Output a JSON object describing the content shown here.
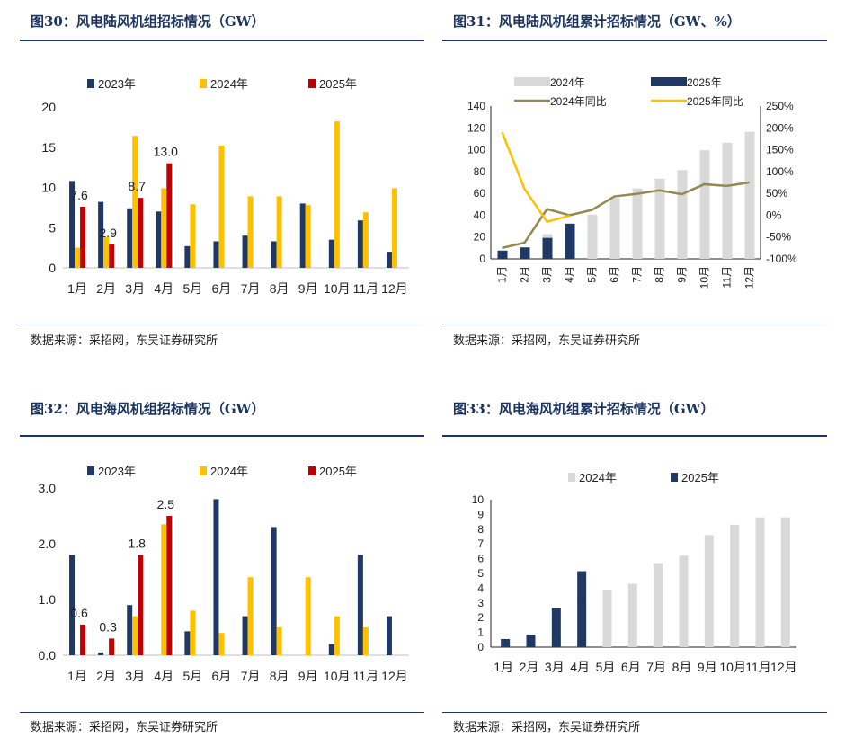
{
  "colors": {
    "c2023": "#1f3864",
    "c2024": "#ffc000",
    "c2025": "#c00000",
    "grey": "#d9d9d9",
    "navy": "#1f3864",
    "olive": "#938953",
    "yellow": "#ffc000",
    "title": "#1b3560"
  },
  "source_text": "数据来源：采招网，东吴证券研究所",
  "panels": [
    {
      "title": "图30：风电陆风机组招标情况（GW）"
    },
    {
      "title": "图31：风电陆风机组累计招标情况（GW、%）"
    },
    {
      "title": "图32：风电海风机组招标情况（GW）"
    },
    {
      "title": "图33：风电海风机组累计招标情况（GW）"
    }
  ],
  "chart_data": [
    {
      "type": "bar",
      "title": "图30：风电陆风机组招标情况（GW）",
      "categories": [
        "1月",
        "2月",
        "3月",
        "4月",
        "5月",
        "6月",
        "7月",
        "8月",
        "9月",
        "10月",
        "11月",
        "12月"
      ],
      "series": [
        {
          "name": "2023年",
          "values": [
            10.8,
            8.2,
            7.4,
            7.0,
            2.7,
            3.3,
            4.0,
            3.3,
            8.0,
            3.5,
            5.9,
            2.0
          ]
        },
        {
          "name": "2024年",
          "values": [
            2.5,
            3.8,
            16.4,
            9.9,
            7.9,
            15.2,
            8.9,
            8.9,
            7.8,
            18.2,
            6.9,
            9.9
          ]
        },
        {
          "name": "2025年",
          "values": [
            7.6,
            2.9,
            8.7,
            13.0,
            null,
            null,
            null,
            null,
            null,
            null,
            null,
            null
          ]
        }
      ],
      "data_labels": [
        "7.6",
        "2.9",
        "8.7",
        "13.0"
      ],
      "ylim": [
        0,
        20
      ],
      "yticks": [
        "0",
        "5",
        "10",
        "15",
        "20"
      ],
      "legend": "top"
    },
    {
      "type": "bar",
      "title": "图31：风电陆风机组累计招标情况（GW、%）",
      "categories": [
        "1月",
        "2月",
        "3月",
        "4月",
        "5月",
        "6月",
        "7月",
        "8月",
        "9月",
        "10月",
        "11月",
        "12月"
      ],
      "series": [
        {
          "name": "2024年",
          "kind": "bar",
          "values": [
            2.5,
            6.3,
            22.7,
            32.6,
            40.5,
            55.7,
            64.6,
            73.5,
            81.3,
            99.5,
            106.4,
            116.3
          ]
        },
        {
          "name": "2025年",
          "kind": "bar",
          "values": [
            7.6,
            10.5,
            19.2,
            32.2,
            null,
            null,
            null,
            null,
            null,
            null,
            null,
            null
          ]
        },
        {
          "name": "2024年同比",
          "kind": "line",
          "axis": "right",
          "values": [
            -75,
            -63,
            14,
            0,
            12,
            43,
            49,
            57,
            48,
            71,
            67,
            75
          ]
        },
        {
          "name": "2025年同比",
          "kind": "line",
          "axis": "right",
          "values": [
            190,
            60,
            -15,
            -1,
            null,
            null,
            null,
            null,
            null,
            null,
            null,
            null
          ]
        }
      ],
      "ylim": [
        0,
        140
      ],
      "yticks": [
        "0",
        "20",
        "40",
        "60",
        "80",
        "100",
        "120",
        "140"
      ],
      "y2lim": [
        -100,
        250
      ],
      "y2ticks": [
        "-100%",
        "-50%",
        "0%",
        "50%",
        "100%",
        "150%",
        "200%",
        "250%"
      ],
      "legend": "top"
    },
    {
      "type": "bar",
      "title": "图32：风电海风机组招标情况（GW）",
      "categories": [
        "1月",
        "2月",
        "3月",
        "4月",
        "5月",
        "6月",
        "7月",
        "8月",
        "9月",
        "10月",
        "11月",
        "12月"
      ],
      "series": [
        {
          "name": "2023年",
          "values": [
            1.8,
            0.05,
            0.9,
            0,
            0.43,
            2.8,
            0.7,
            2.3,
            0,
            0.2,
            1.8,
            0.7
          ]
        },
        {
          "name": "2024年",
          "values": [
            0,
            0,
            0.7,
            2.35,
            0.8,
            0.4,
            1.4,
            0.5,
            1.4,
            0.7,
            0.5,
            0
          ]
        },
        {
          "name": "2025年",
          "values": [
            0.55,
            0.3,
            1.8,
            2.5,
            null,
            null,
            null,
            null,
            null,
            null,
            null,
            null
          ]
        }
      ],
      "data_labels": [
        "0.6",
        "0.3",
        "1.8",
        "2.5"
      ],
      "ylim": [
        0,
        3
      ],
      "yticks": [
        "0.0",
        "1.0",
        "2.0",
        "3.0"
      ],
      "legend": "top"
    },
    {
      "type": "bar",
      "title": "图33：风电海风机组累计招标情况（GW）",
      "categories": [
        "1月",
        "2月",
        "3月",
        "4月",
        "5月",
        "6月",
        "7月",
        "8月",
        "9月",
        "10月",
        "11月",
        "12月"
      ],
      "series": [
        {
          "name": "2024年",
          "values": [
            0,
            0,
            0.75,
            3.1,
            3.9,
            4.3,
            5.7,
            6.2,
            7.6,
            8.3,
            8.8,
            8.8
          ]
        },
        {
          "name": "2025年",
          "values": [
            0.55,
            0.85,
            2.65,
            5.15,
            null,
            null,
            null,
            null,
            null,
            null,
            null,
            null
          ]
        }
      ],
      "ylim": [
        0,
        10
      ],
      "yticks": [
        "0",
        "1",
        "2",
        "3",
        "4",
        "5",
        "6",
        "7",
        "8",
        "9",
        "10"
      ],
      "legend": "top"
    }
  ]
}
